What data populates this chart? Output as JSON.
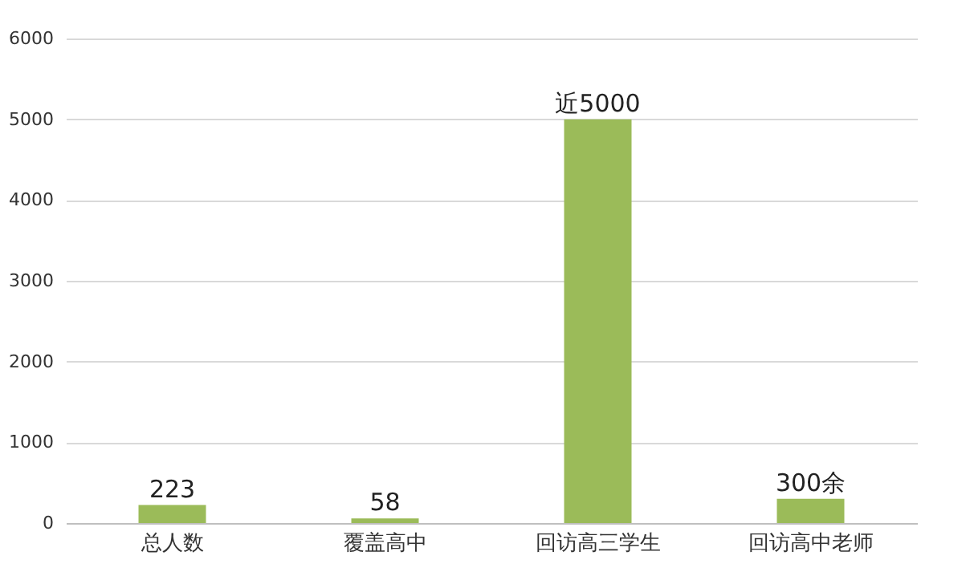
{
  "chart_data": {
    "type": "bar",
    "categories": [
      "总人数",
      "覆盖高中",
      "回访高三学生",
      "回访高中老师"
    ],
    "values": [
      223,
      58,
      5000,
      300
    ],
    "value_labels": [
      "223",
      "58",
      "近5000",
      "300余"
    ],
    "color": "#9bbb59",
    "ylim": [
      0,
      6000
    ],
    "yticks": [
      0,
      1000,
      2000,
      3000,
      4000,
      5000,
      6000
    ],
    "grid": "y"
  }
}
